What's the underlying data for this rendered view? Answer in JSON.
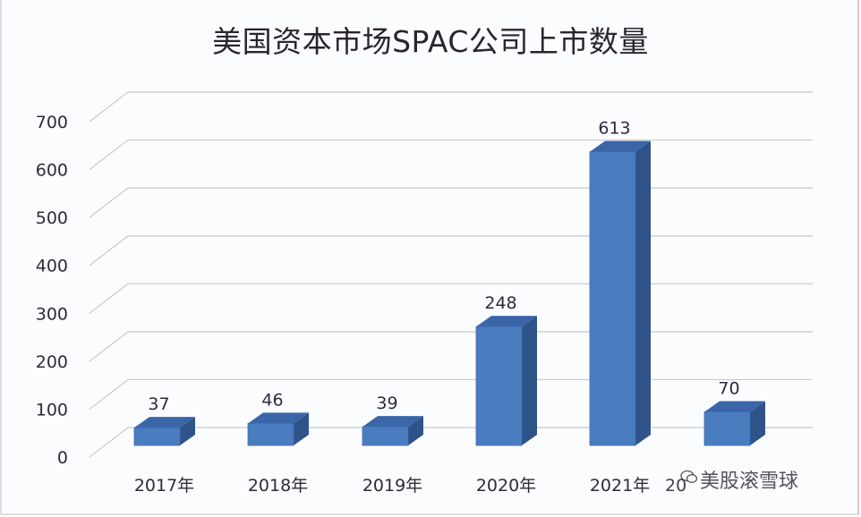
{
  "chart_data": {
    "type": "bar",
    "style": "3d-column",
    "title": "美国资本市场SPAC公司上市数量",
    "xlabel": "",
    "ylabel": "",
    "categories": [
      "2017年",
      "2018年",
      "2019年",
      "2020年",
      "2021年",
      "2022年"
    ],
    "values": [
      37,
      46,
      39,
      248,
      613,
      70
    ],
    "data_labels": [
      "37",
      "46",
      "39",
      "248",
      "613",
      "70"
    ],
    "yticks": [
      "0",
      "100",
      "200",
      "300",
      "400",
      "500",
      "600",
      "700"
    ],
    "ylim": [
      0,
      700
    ],
    "grid": true,
    "legend": "none",
    "colors": {
      "bar_front": "#4a7cc0",
      "bar_top": "#3a65a8",
      "bar_side": "#2f5389",
      "grid": "#c8c9cc"
    }
  },
  "watermark": {
    "text": "美股滚雪球",
    "icon": "wechat-icon"
  }
}
